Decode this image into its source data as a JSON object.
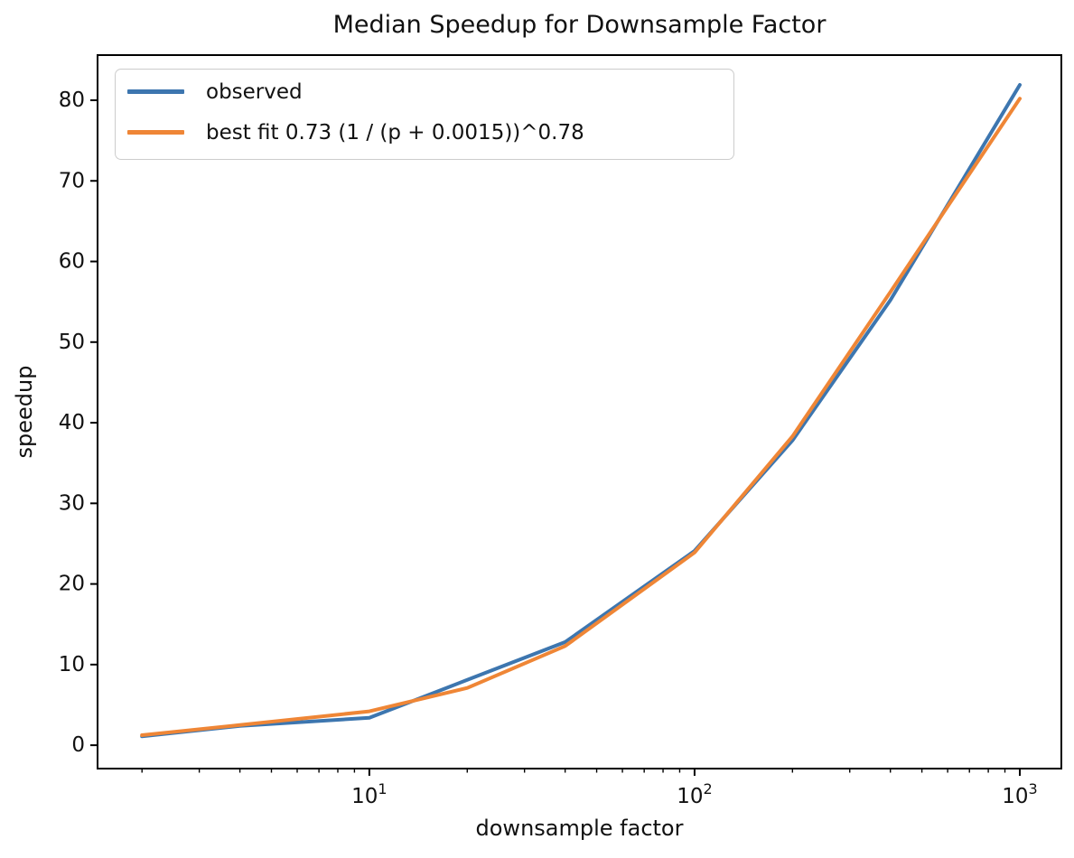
{
  "chart_data": {
    "type": "line",
    "title": "Median Speedup for Downsample Factor",
    "xlabel": "downsample factor",
    "ylabel": "speedup",
    "x_scale": "log",
    "grid": false,
    "legend_position": "upper left",
    "xlim": [
      1.46,
      1342
    ],
    "ylim": [
      -2.9,
      85.6
    ],
    "x_major_ticks": [
      10,
      100,
      1000
    ],
    "y_ticks": [
      0,
      10,
      20,
      30,
      40,
      50,
      60,
      70,
      80
    ],
    "x": [
      2,
      4,
      10,
      20,
      40,
      100,
      200,
      400,
      1000
    ],
    "series": [
      {
        "name": "observed",
        "color": "#3d76af",
        "values": [
          1.1,
          2.4,
          3.4,
          8.1,
          12.8,
          24.1,
          37.8,
          55.2,
          81.9
        ]
      },
      {
        "name": "best fit 0.73 (1 / (p + 0.0015))^0.78",
        "color": "#ef8636",
        "values": [
          1.25,
          2.5,
          4.2,
          7.1,
          12.3,
          23.9,
          38.3,
          56.2,
          80.2
        ]
      }
    ],
    "spine_color": "#000000",
    "tick_label_color": "#111111"
  }
}
